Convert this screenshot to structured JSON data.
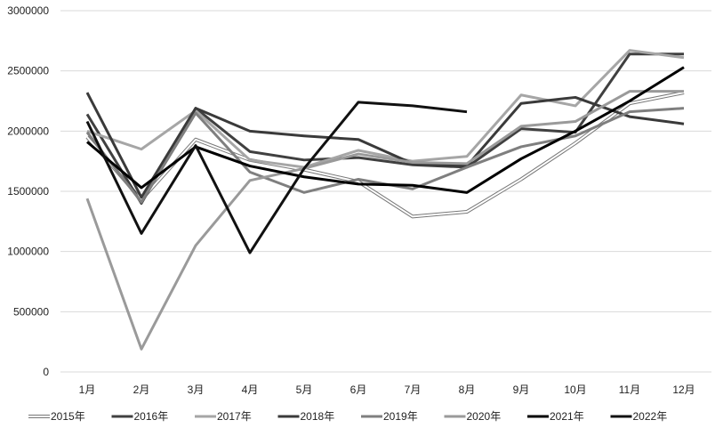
{
  "chart_data": {
    "type": "line",
    "title": "",
    "xlabel": "",
    "ylabel": "",
    "ylim": [
      0,
      3000000
    ],
    "yticks": [
      "0",
      "500000",
      "1000000",
      "1500000",
      "2000000",
      "2500000",
      "3000000"
    ],
    "ytick_values": [
      0,
      500000,
      1000000,
      1500000,
      2000000,
      2500000,
      3000000
    ],
    "categories": [
      "1月",
      "2月",
      "3月",
      "4月",
      "5月",
      "6月",
      "7月",
      "8月",
      "9月",
      "10月",
      "11月",
      "12月"
    ],
    "grid": true,
    "legend_position": "bottom",
    "series": [
      {
        "name": "2015年",
        "color": "#ffffff",
        "outline": "#777777",
        "values": [
          1950000,
          1430000,
          1930000,
          1760000,
          1680000,
          1580000,
          1290000,
          1330000,
          1600000,
          1900000,
          2230000,
          2320000
        ]
      },
      {
        "name": "2016年",
        "color": "#404040",
        "values": [
          2140000,
          1400000,
          2190000,
          1830000,
          1760000,
          1780000,
          1720000,
          1700000,
          2020000,
          1990000,
          2640000,
          2640000
        ]
      },
      {
        "name": "2017年",
        "color": "#a6a6a6",
        "values": [
          2000000,
          1850000,
          2170000,
          1760000,
          1700000,
          1840000,
          1750000,
          1790000,
          2300000,
          2210000,
          2670000,
          2610000
        ]
      },
      {
        "name": "2018年",
        "color": "#3a3a3a",
        "values": [
          2320000,
          1450000,
          2190000,
          2000000,
          1960000,
          1930000,
          1730000,
          1710000,
          2230000,
          2280000,
          2120000,
          2060000
        ]
      },
      {
        "name": "2019年",
        "color": "#7f7f7f",
        "values": [
          1990000,
          1410000,
          2150000,
          1660000,
          1490000,
          1600000,
          1520000,
          1700000,
          1870000,
          1960000,
          2160000,
          2190000
        ]
      },
      {
        "name": "2020年",
        "color": "#9a9a9a",
        "values": [
          1440000,
          190000,
          1050000,
          1590000,
          1690000,
          1810000,
          1740000,
          1730000,
          2040000,
          2080000,
          2330000,
          2330000
        ]
      },
      {
        "name": "2021年",
        "color": "#000000",
        "values": [
          1910000,
          1530000,
          1870000,
          1710000,
          1620000,
          1560000,
          1550000,
          1490000,
          1770000,
          2000000,
          2250000,
          2530000
        ]
      },
      {
        "name": "2022年",
        "color": "#111111",
        "values": [
          2080000,
          1150000,
          1880000,
          990000,
          1690000,
          2240000,
          2210000,
          2160000,
          null,
          null,
          null,
          null
        ]
      }
    ]
  }
}
